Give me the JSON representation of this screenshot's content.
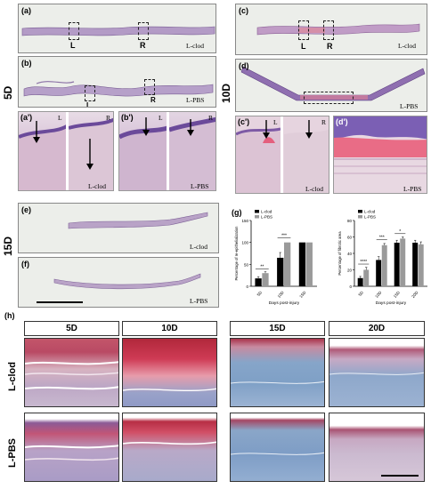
{
  "panels": {
    "a": "(a)",
    "b": "(b)",
    "a_prime": "(a')",
    "b_prime": "(b')",
    "c": "(c)",
    "d": "(d)",
    "c_prime": "(c')",
    "d_prime": "(d')",
    "e": "(e)",
    "f": "(f)",
    "g": "(g)",
    "h": "(h)"
  },
  "groups": {
    "d5": "5D",
    "d10": "10D",
    "d15": "15D"
  },
  "conditions": {
    "clod": "L-clod",
    "pbs": "L-PBS"
  },
  "markers": {
    "left": "L",
    "right": "R"
  },
  "grid": {
    "columns": [
      "5D",
      "10D",
      "15D",
      "20D"
    ],
    "rows": [
      "L-clod",
      "L-PBS"
    ]
  },
  "chart_data": [
    {
      "type": "bar",
      "ylabel": "Percentage of re-epithelialization",
      "xlabel": "Days post-injury",
      "categories": [
        "5D",
        "10D",
        "15D"
      ],
      "ylim": [
        0,
        150
      ],
      "yticks": [
        0,
        50,
        100,
        150
      ],
      "series": [
        {
          "name": "L-clod",
          "color": "#000000",
          "values": [
            18,
            65,
            100
          ]
        },
        {
          "name": "L-PBS",
          "color": "#9a9a9a",
          "values": [
            30,
            100,
            100
          ]
        }
      ],
      "error": [
        [
          4,
          12,
          0
        ],
        [
          3,
          0,
          0
        ]
      ],
      "significance": [
        {
          "category": 0,
          "label": "**",
          "level": 40
        },
        {
          "category": 1,
          "label": "***",
          "level": 110
        }
      ],
      "legend": "top-left"
    },
    {
      "type": "bar",
      "ylabel": "Percentage of fibrotic area",
      "xlabel": "Days post-injury",
      "categories": [
        "5D",
        "10D",
        "15D",
        "20D"
      ],
      "ylim": [
        0,
        80
      ],
      "yticks": [
        0,
        20,
        40,
        60,
        80
      ],
      "series": [
        {
          "name": "L-clod",
          "color": "#000000",
          "values": [
            10,
            32,
            53,
            53
          ]
        },
        {
          "name": "L-PBS",
          "color": "#9a9a9a",
          "values": [
            20,
            50,
            58,
            51
          ]
        }
      ],
      "error": [
        [
          2,
          4,
          3,
          3
        ],
        [
          3,
          2,
          2,
          3
        ]
      ],
      "significance": [
        {
          "category": 0,
          "label": "****",
          "level": 27
        },
        {
          "category": 1,
          "label": "***",
          "level": 57
        },
        {
          "category": 2,
          "label": "*",
          "level": 64
        }
      ],
      "legend": "top-left"
    }
  ]
}
